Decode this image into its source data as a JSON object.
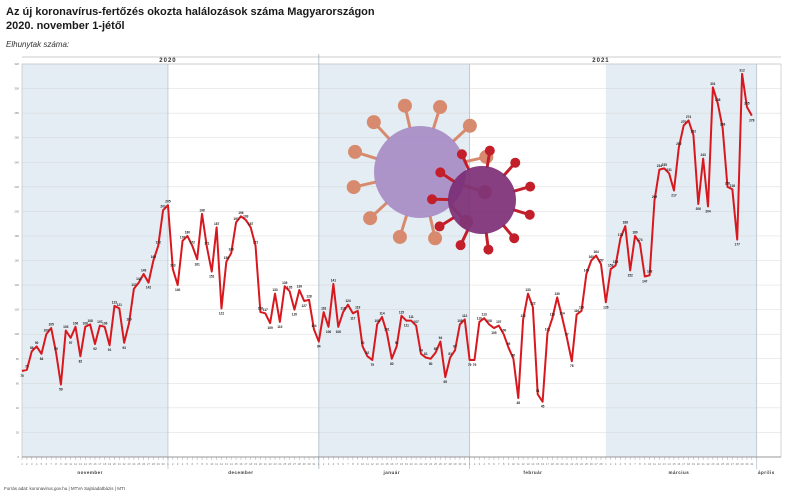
{
  "header": {
    "title_line1": "Az új koronavírus-fertőzés okozta halálozások száma Magyarországon",
    "title_line2": "2020. november 1-jétől",
    "axis_caption": "Elhunytak száma:"
  },
  "footer": {
    "text": "Forrás adat: koronavirus.gov.hu | MTVA Sajtóadatbázis | MTI"
  },
  "colors": {
    "line": "#d7191f",
    "band": "#e4edf3",
    "grid": "#cfcfcf",
    "virus_large": "#a58ac4",
    "virus_small": "#7a2a73"
  },
  "chart_data": {
    "type": "line",
    "x_start": "2020-11-01",
    "x_end": "2021-04-06",
    "ylim": [
      0,
      320
    ],
    "year_labels": [
      {
        "text": "2020",
        "at": "2020-12-01"
      },
      {
        "text": "2021",
        "at": "2021-02-28"
      }
    ],
    "month_labels": [
      {
        "text": "november",
        "at": "2020-11-15"
      },
      {
        "text": "december",
        "at": "2020-12-16"
      },
      {
        "text": "január",
        "at": "2021-01-16"
      },
      {
        "text": "február",
        "at": "2021-02-14"
      },
      {
        "text": "március",
        "at": "2021-03-16"
      },
      {
        "text": "április",
        "at": "2021-04-03"
      }
    ],
    "month_bands": [
      {
        "from": "2020-11-01",
        "to": "2020-12-01"
      },
      {
        "from": "2021-01-01",
        "to": "2021-02-01"
      },
      {
        "from": "2021-03-01",
        "to": "2021-04-01"
      }
    ],
    "series": [
      {
        "values": [
          70,
          71,
          86,
          90,
          84,
          100,
          105,
          85,
          59,
          103,
          97,
          106,
          82,
          106,
          108,
          92,
          107,
          106,
          91,
          123,
          121,
          93,
          109,
          137,
          142,
          149,
          142,
          160,
          172,
          201,
          205,
          153,
          140,
          176,
          180,
          172,
          161,
          198,
          171,
          151,
          187,
          121,
          159,
          166,
          191,
          196,
          193,
          187,
          172,
          118,
          117,
          109,
          133,
          110,
          139,
          135,
          120,
          136,
          127,
          128,
          104,
          94,
          118,
          106,
          141,
          106,
          118,
          124,
          117,
          119,
          90,
          82,
          79,
          108,
          114,
          101,
          80,
          90,
          115,
          111,
          111,
          107,
          84,
          81,
          80,
          85,
          94,
          65,
          81,
          87,
          108,
          112,
          79,
          79,
          110,
          113,
          108,
          105,
          107,
          100,
          89,
          80,
          48,
          112,
          133,
          122,
          51,
          45,
          101,
          113,
          130,
          114,
          97,
          78,
          116,
          119,
          149,
          160,
          164,
          157,
          126,
          153,
          156,
          178,
          188,
          152,
          180,
          174,
          147,
          148,
          209,
          234,
          235,
          231,
          217,
          252,
          270,
          274,
          262,
          206,
          243,
          204,
          301,
          288,
          268,
          220,
          218,
          177,
          312,
          285,
          278
        ]
      }
    ]
  }
}
